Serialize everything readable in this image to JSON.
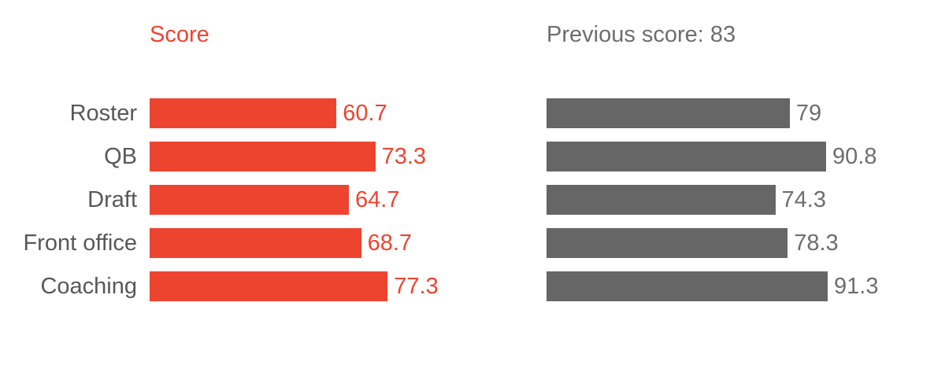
{
  "panels": [
    {
      "title": "Score",
      "title_color": "#ed4430"
    },
    {
      "title": "Previous score: 83",
      "title_color": "#6e6e6e"
    }
  ],
  "chart_data": {
    "type": "bar",
    "orientation": "horizontal",
    "categories": [
      "Roster",
      "QB",
      "Draft",
      "Front office",
      "Coaching"
    ],
    "series": [
      {
        "name": "Score",
        "values": [
          60.7,
          73.3,
          64.7,
          68.7,
          77.3
        ],
        "value_labels": [
          "60.7",
          "73.3",
          "64.7",
          "68.7",
          "77.3"
        ],
        "bar_color": "#ed4430",
        "value_label_color": "#ed4430"
      },
      {
        "name": "Previous score: 83",
        "values": [
          79,
          90.8,
          74.3,
          78.3,
          91.3
        ],
        "value_labels": [
          "79",
          "90.8",
          "74.3",
          "78.3",
          "91.3"
        ],
        "bar_color": "#666666",
        "value_label_color": "#6e6e6e"
      }
    ],
    "xlim": [
      0,
      100
    ],
    "grid": false,
    "legend_position": "titles-above-panels",
    "category_label_color": "#57585a",
    "value_labels_shown": true,
    "axis_ticks_shown": false
  }
}
